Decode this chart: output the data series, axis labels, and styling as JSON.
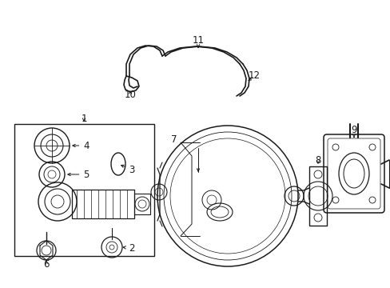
{
  "bg_color": "#ffffff",
  "line_color": "#1a1a1a",
  "figsize": [
    4.89,
    3.6
  ],
  "dpi": 100,
  "xlim": [
    0,
    489
  ],
  "ylim": [
    0,
    360
  ]
}
